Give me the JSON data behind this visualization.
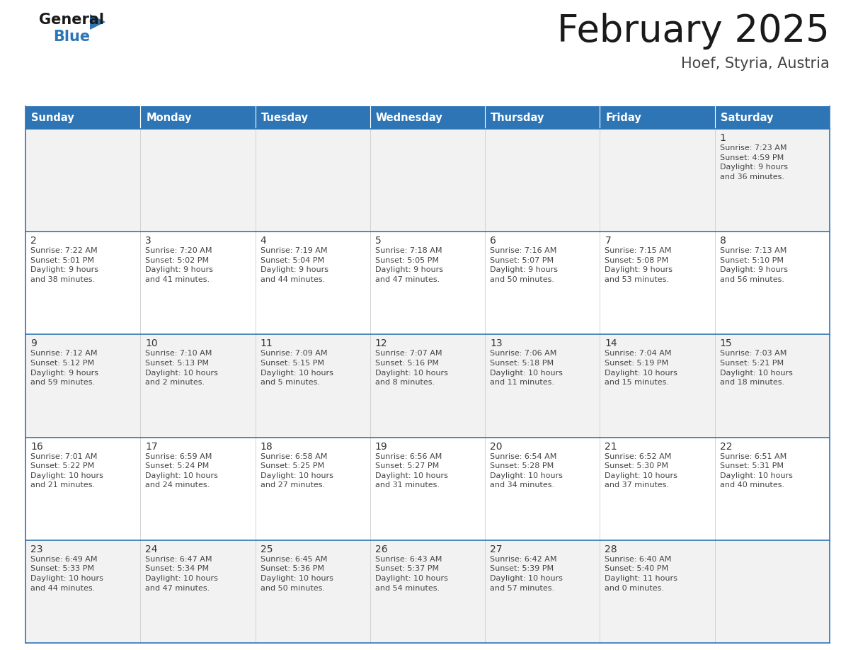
{
  "title": "February 2025",
  "subtitle": "Hoef, Styria, Austria",
  "header_bg": "#2E75B6",
  "header_text_color": "#FFFFFF",
  "day_names": [
    "Sunday",
    "Monday",
    "Tuesday",
    "Wednesday",
    "Thursday",
    "Friday",
    "Saturday"
  ],
  "cell_bg_row0": "#F2F2F2",
  "cell_bg_row1": "#FFFFFF",
  "cell_bg_row2": "#F2F2F2",
  "cell_bg_row3": "#FFFFFF",
  "cell_bg_row4": "#F2F2F2",
  "cell_border_color": "#2E75B6",
  "day_num_color": "#333333",
  "info_text_color": "#444444",
  "weeks": [
    {
      "days": [
        {
          "date": null,
          "info": ""
        },
        {
          "date": null,
          "info": ""
        },
        {
          "date": null,
          "info": ""
        },
        {
          "date": null,
          "info": ""
        },
        {
          "date": null,
          "info": ""
        },
        {
          "date": null,
          "info": ""
        },
        {
          "date": 1,
          "info": "Sunrise: 7:23 AM\nSunset: 4:59 PM\nDaylight: 9 hours\nand 36 minutes."
        }
      ]
    },
    {
      "days": [
        {
          "date": 2,
          "info": "Sunrise: 7:22 AM\nSunset: 5:01 PM\nDaylight: 9 hours\nand 38 minutes."
        },
        {
          "date": 3,
          "info": "Sunrise: 7:20 AM\nSunset: 5:02 PM\nDaylight: 9 hours\nand 41 minutes."
        },
        {
          "date": 4,
          "info": "Sunrise: 7:19 AM\nSunset: 5:04 PM\nDaylight: 9 hours\nand 44 minutes."
        },
        {
          "date": 5,
          "info": "Sunrise: 7:18 AM\nSunset: 5:05 PM\nDaylight: 9 hours\nand 47 minutes."
        },
        {
          "date": 6,
          "info": "Sunrise: 7:16 AM\nSunset: 5:07 PM\nDaylight: 9 hours\nand 50 minutes."
        },
        {
          "date": 7,
          "info": "Sunrise: 7:15 AM\nSunset: 5:08 PM\nDaylight: 9 hours\nand 53 minutes."
        },
        {
          "date": 8,
          "info": "Sunrise: 7:13 AM\nSunset: 5:10 PM\nDaylight: 9 hours\nand 56 minutes."
        }
      ]
    },
    {
      "days": [
        {
          "date": 9,
          "info": "Sunrise: 7:12 AM\nSunset: 5:12 PM\nDaylight: 9 hours\nand 59 minutes."
        },
        {
          "date": 10,
          "info": "Sunrise: 7:10 AM\nSunset: 5:13 PM\nDaylight: 10 hours\nand 2 minutes."
        },
        {
          "date": 11,
          "info": "Sunrise: 7:09 AM\nSunset: 5:15 PM\nDaylight: 10 hours\nand 5 minutes."
        },
        {
          "date": 12,
          "info": "Sunrise: 7:07 AM\nSunset: 5:16 PM\nDaylight: 10 hours\nand 8 minutes."
        },
        {
          "date": 13,
          "info": "Sunrise: 7:06 AM\nSunset: 5:18 PM\nDaylight: 10 hours\nand 11 minutes."
        },
        {
          "date": 14,
          "info": "Sunrise: 7:04 AM\nSunset: 5:19 PM\nDaylight: 10 hours\nand 15 minutes."
        },
        {
          "date": 15,
          "info": "Sunrise: 7:03 AM\nSunset: 5:21 PM\nDaylight: 10 hours\nand 18 minutes."
        }
      ]
    },
    {
      "days": [
        {
          "date": 16,
          "info": "Sunrise: 7:01 AM\nSunset: 5:22 PM\nDaylight: 10 hours\nand 21 minutes."
        },
        {
          "date": 17,
          "info": "Sunrise: 6:59 AM\nSunset: 5:24 PM\nDaylight: 10 hours\nand 24 minutes."
        },
        {
          "date": 18,
          "info": "Sunrise: 6:58 AM\nSunset: 5:25 PM\nDaylight: 10 hours\nand 27 minutes."
        },
        {
          "date": 19,
          "info": "Sunrise: 6:56 AM\nSunset: 5:27 PM\nDaylight: 10 hours\nand 31 minutes."
        },
        {
          "date": 20,
          "info": "Sunrise: 6:54 AM\nSunset: 5:28 PM\nDaylight: 10 hours\nand 34 minutes."
        },
        {
          "date": 21,
          "info": "Sunrise: 6:52 AM\nSunset: 5:30 PM\nDaylight: 10 hours\nand 37 minutes."
        },
        {
          "date": 22,
          "info": "Sunrise: 6:51 AM\nSunset: 5:31 PM\nDaylight: 10 hours\nand 40 minutes."
        }
      ]
    },
    {
      "days": [
        {
          "date": 23,
          "info": "Sunrise: 6:49 AM\nSunset: 5:33 PM\nDaylight: 10 hours\nand 44 minutes."
        },
        {
          "date": 24,
          "info": "Sunrise: 6:47 AM\nSunset: 5:34 PM\nDaylight: 10 hours\nand 47 minutes."
        },
        {
          "date": 25,
          "info": "Sunrise: 6:45 AM\nSunset: 5:36 PM\nDaylight: 10 hours\nand 50 minutes."
        },
        {
          "date": 26,
          "info": "Sunrise: 6:43 AM\nSunset: 5:37 PM\nDaylight: 10 hours\nand 54 minutes."
        },
        {
          "date": 27,
          "info": "Sunrise: 6:42 AM\nSunset: 5:39 PM\nDaylight: 10 hours\nand 57 minutes."
        },
        {
          "date": 28,
          "info": "Sunrise: 6:40 AM\nSunset: 5:40 PM\nDaylight: 11 hours\nand 0 minutes."
        },
        {
          "date": null,
          "info": ""
        }
      ]
    }
  ]
}
